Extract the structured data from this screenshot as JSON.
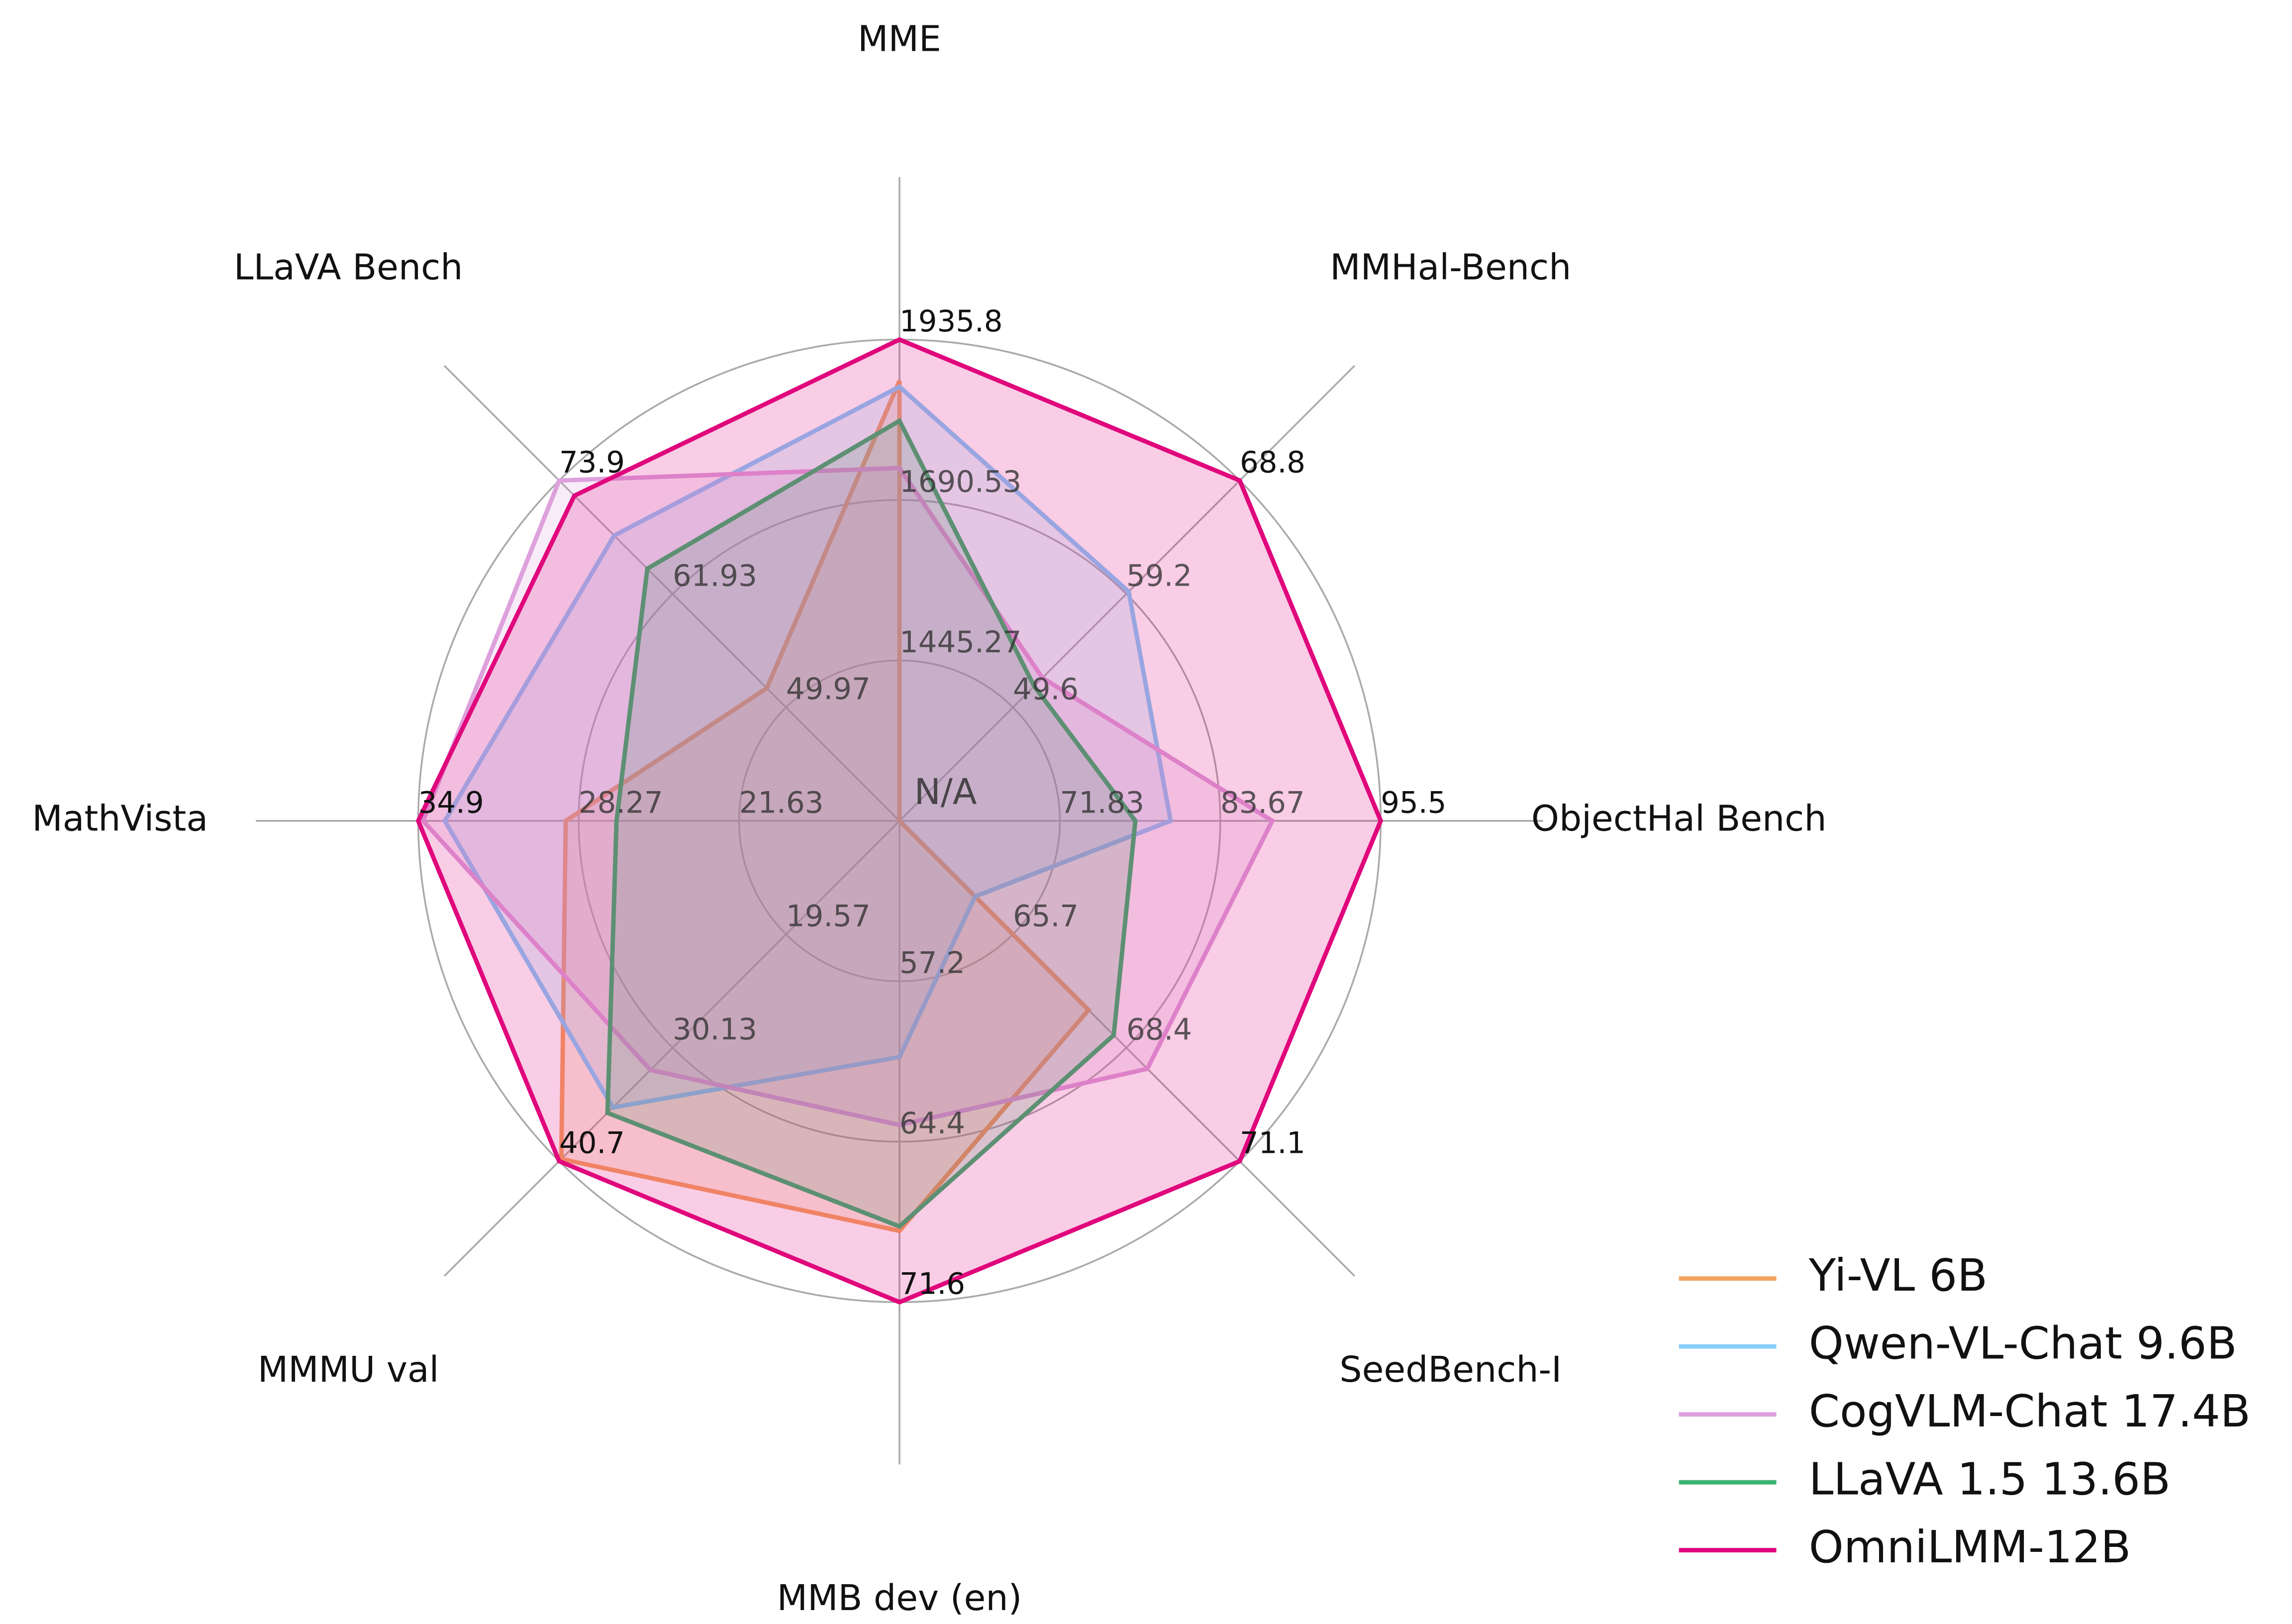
{
  "chart_data": {
    "type": "radar",
    "categories": [
      "MME",
      "MMHal-Bench",
      "ObjectHal Bench",
      "SeedBench-I",
      "MMB dev (en)",
      "MMMU val",
      "MathVista",
      "LLaVA Bench"
    ],
    "center_label": "N/A",
    "axes": [
      {
        "lim": [
          1200,
          1935.8
        ],
        "ticks": [
          1445.27,
          1690.53,
          1935.8
        ]
      },
      {
        "lim": [
          40,
          68.8
        ],
        "ticks": [
          49.6,
          59.2,
          68.8
        ]
      },
      {
        "lim": [
          60,
          95.5
        ],
        "ticks": [
          71.83,
          83.67,
          95.5
        ]
      },
      {
        "lim": [
          63,
          71.1
        ],
        "ticks": [
          65.7,
          68.4,
          71.1
        ]
      },
      {
        "lim": [
          50,
          71.6
        ],
        "ticks": [
          57.2,
          64.4,
          71.6
        ]
      },
      {
        "lim": [
          9,
          40.7
        ],
        "ticks": [
          19.57,
          30.13,
          40.7
        ]
      },
      {
        "lim": [
          15,
          34.9
        ],
        "ticks": [
          21.63,
          28.27,
          34.9
        ]
      },
      {
        "lim": [
          38,
          73.9
        ],
        "ticks": [
          49.97,
          61.93,
          73.9
        ]
      }
    ],
    "series": [
      {
        "name": "Yi-VL 6B",
        "color": "#f4a35f",
        "values": [
          1872.5,
          null,
          null,
          67.5,
          68.4,
          40.5,
          28.8,
          52.0
        ]
      },
      {
        "name": "Qwen-VL-Chat 9.6B",
        "color": "#87cefa",
        "values": [
          1863.7,
          59.4,
          80.0,
          64.8,
          60.6,
          35.7,
          33.8,
          68.1
        ]
      },
      {
        "name": "CogVLM-Chat 17.4B",
        "color": "#dda0dd",
        "values": [
          1739.4,
          52.1,
          87.5,
          68.9,
          63.65,
          32.2,
          34.7,
          73.9
        ]
      },
      {
        "name": "LLaVA 1.5 13.6B",
        "color": "#3cb371",
        "values": [
          1811.6,
          51.4,
          77.4,
          68.1,
          68.2,
          36.2,
          26.7,
          64.6
        ]
      },
      {
        "name": "OmniLMM-12B",
        "color": "#e0077d",
        "values": [
          1935.8,
          68.8,
          95.5,
          71.1,
          71.6,
          40.7,
          34.9,
          72.3
        ]
      }
    ],
    "grid": true
  }
}
